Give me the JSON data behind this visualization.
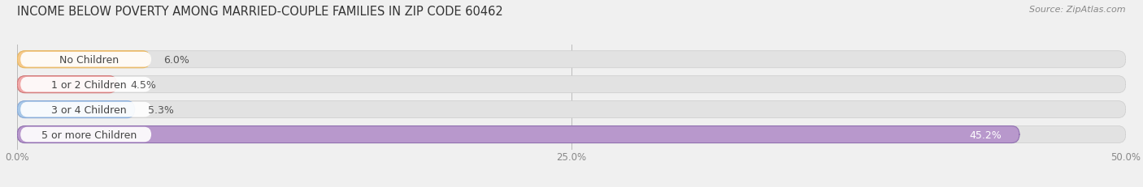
{
  "title": "INCOME BELOW POVERTY AMONG MARRIED-COUPLE FAMILIES IN ZIP CODE 60462",
  "source": "Source: ZipAtlas.com",
  "categories": [
    "No Children",
    "1 or 2 Children",
    "3 or 4 Children",
    "5 or more Children"
  ],
  "values": [
    6.0,
    4.5,
    5.3,
    45.2
  ],
  "bar_colors": [
    "#f5c98a",
    "#f0a8a8",
    "#a8c8e8",
    "#b898cc"
  ],
  "bar_edge_colors": [
    "#e8b860",
    "#d07878",
    "#88aad8",
    "#9070b0"
  ],
  "label_colors": [
    "#555555",
    "#555555",
    "#555555",
    "#ffffff"
  ],
  "xlim": [
    0,
    50
  ],
  "xtick_labels": [
    "0.0%",
    "25.0%",
    "50.0%"
  ],
  "bg_color": "#f0f0f0",
  "bar_bg_color": "#e2e2e2",
  "white_label_bg": "#ffffff",
  "title_fontsize": 10.5,
  "source_fontsize": 8,
  "label_fontsize": 9,
  "cat_fontsize": 9
}
